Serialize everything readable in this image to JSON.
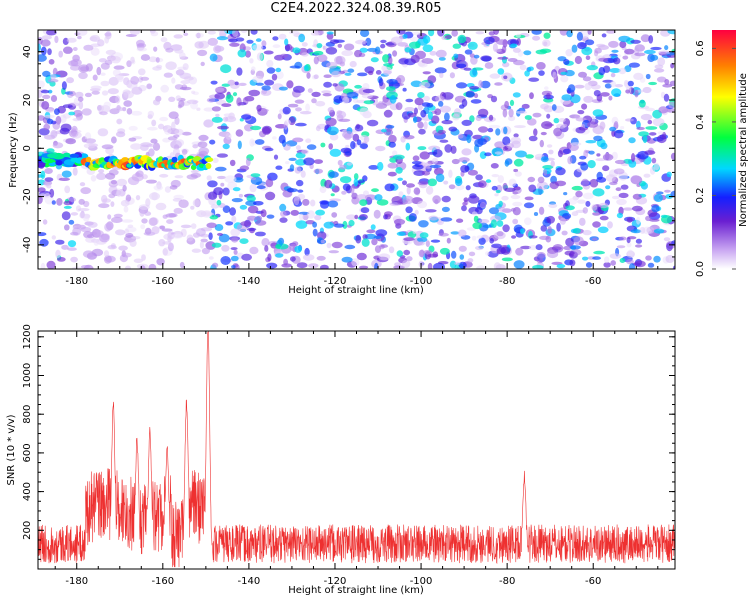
{
  "title": "C2E4.2022.324.08.39.R05",
  "colors": {
    "spectrogram_low": "#ffffff",
    "spectrogram_mid": "#6a1fd1",
    "line_series": "#ee3030"
  },
  "chart_data": [
    {
      "type": "heatmap",
      "xlabel": "Height of straight line (km)",
      "ylabel": "Frequency (Hz)",
      "xlim": [
        -189,
        -41
      ],
      "ylim": [
        -50,
        49
      ],
      "xticks": [
        -180,
        -160,
        -140,
        -120,
        -100,
        -80,
        -60
      ],
      "yticks": [
        -40,
        -20,
        0,
        20,
        40
      ],
      "colorbar": {
        "label": "Normalized spectral amplitude",
        "range": [
          0.0,
          0.65
        ],
        "ticks": [
          0.0,
          0.2,
          0.4,
          0.6
        ]
      },
      "features": [
        {
          "description": "strong narrowband signal",
          "x_range": [
            -178,
            -149
          ],
          "frequency": -6,
          "peak_amplitude": 0.6
        },
        {
          "description": "low-amplitude noise band",
          "x_range": [
            -189,
            -178
          ],
          "frequency": -5,
          "peak_amplitude": 0.25
        },
        {
          "description": "quiet region",
          "x_range": [
            -181,
            -149
          ],
          "frequency_range": [
            -50,
            49
          ]
        }
      ],
      "grid": false
    },
    {
      "type": "line",
      "xlabel": "Height of straight line (km)",
      "ylabel": "SNR (10 * v/v)",
      "xlim": [
        -189,
        -41
      ],
      "ylim": [
        0,
        1230
      ],
      "xticks": [
        -180,
        -160,
        -140,
        -120,
        -100,
        -80,
        -60
      ],
      "yticks": [
        200,
        400,
        600,
        800,
        1000,
        1200
      ],
      "noise_floor": {
        "x_range": [
          -145,
          -41
        ],
        "typical": 130,
        "range": [
          40,
          320
        ]
      },
      "peaks": [
        {
          "x": -171.5,
          "y": 830
        },
        {
          "x": -166,
          "y": 640
        },
        {
          "x": -163,
          "y": 680
        },
        {
          "x": -159,
          "y": 600
        },
        {
          "x": -154.5,
          "y": 830
        },
        {
          "x": -149.5,
          "y": 1215
        },
        {
          "x": -76,
          "y": 450
        }
      ],
      "grid": false
    }
  ]
}
